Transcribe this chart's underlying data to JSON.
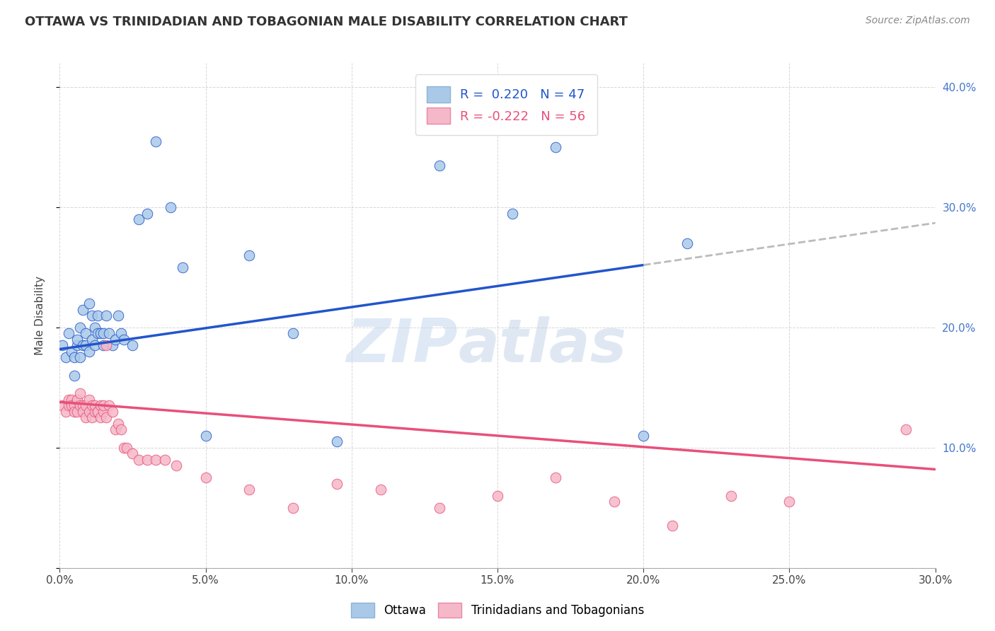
{
  "title": "OTTAWA VS TRINIDADIAN AND TOBAGONIAN MALE DISABILITY CORRELATION CHART",
  "source": "Source: ZipAtlas.com",
  "ylabel": "Male Disability",
  "watermark_zip": "ZIP",
  "watermark_atlas": "atlas",
  "legend_labels": [
    "Ottawa",
    "Trinidadians and Tobagonians"
  ],
  "r_ottawa": 0.22,
  "n_ottawa": 47,
  "r_tt": -0.222,
  "n_tt": 56,
  "xlim": [
    0.0,
    0.3
  ],
  "ylim": [
    0.0,
    0.42
  ],
  "color_ottawa": "#aac9e8",
  "color_tt": "#f5b8c8",
  "color_ottawa_line": "#2255cc",
  "color_tt_line": "#e8507a",
  "color_grid": "#cccccc",
  "background_color": "#ffffff",
  "ottawa_x": [
    0.001,
    0.002,
    0.003,
    0.004,
    0.005,
    0.005,
    0.006,
    0.006,
    0.007,
    0.007,
    0.008,
    0.008,
    0.009,
    0.009,
    0.01,
    0.01,
    0.011,
    0.011,
    0.012,
    0.012,
    0.013,
    0.013,
    0.014,
    0.015,
    0.015,
    0.016,
    0.017,
    0.018,
    0.019,
    0.02,
    0.021,
    0.022,
    0.025,
    0.027,
    0.03,
    0.033,
    0.038,
    0.042,
    0.05,
    0.065,
    0.08,
    0.095,
    0.13,
    0.155,
    0.17,
    0.2,
    0.215
  ],
  "ottawa_y": [
    0.185,
    0.175,
    0.195,
    0.18,
    0.175,
    0.16,
    0.185,
    0.19,
    0.175,
    0.2,
    0.185,
    0.215,
    0.185,
    0.195,
    0.18,
    0.22,
    0.21,
    0.19,
    0.185,
    0.2,
    0.21,
    0.195,
    0.195,
    0.195,
    0.185,
    0.21,
    0.195,
    0.185,
    0.19,
    0.21,
    0.195,
    0.19,
    0.185,
    0.29,
    0.295,
    0.355,
    0.3,
    0.25,
    0.11,
    0.26,
    0.195,
    0.105,
    0.335,
    0.295,
    0.35,
    0.11,
    0.27
  ],
  "tt_x": [
    0.001,
    0.002,
    0.003,
    0.003,
    0.004,
    0.004,
    0.005,
    0.005,
    0.006,
    0.006,
    0.007,
    0.007,
    0.008,
    0.008,
    0.009,
    0.009,
    0.01,
    0.01,
    0.011,
    0.011,
    0.012,
    0.012,
    0.013,
    0.013,
    0.014,
    0.014,
    0.015,
    0.015,
    0.016,
    0.016,
    0.017,
    0.018,
    0.019,
    0.02,
    0.021,
    0.022,
    0.023,
    0.025,
    0.027,
    0.03,
    0.033,
    0.036,
    0.04,
    0.05,
    0.065,
    0.08,
    0.095,
    0.11,
    0.13,
    0.15,
    0.17,
    0.19,
    0.21,
    0.23,
    0.25,
    0.29
  ],
  "tt_y": [
    0.135,
    0.13,
    0.135,
    0.14,
    0.14,
    0.135,
    0.135,
    0.13,
    0.13,
    0.14,
    0.135,
    0.145,
    0.135,
    0.13,
    0.135,
    0.125,
    0.13,
    0.14,
    0.135,
    0.125,
    0.13,
    0.135,
    0.13,
    0.13,
    0.135,
    0.125,
    0.13,
    0.135,
    0.125,
    0.185,
    0.135,
    0.13,
    0.115,
    0.12,
    0.115,
    0.1,
    0.1,
    0.095,
    0.09,
    0.09,
    0.09,
    0.09,
    0.085,
    0.075,
    0.065,
    0.05,
    0.07,
    0.065,
    0.05,
    0.06,
    0.075,
    0.055,
    0.035,
    0.06,
    0.055,
    0.115
  ]
}
